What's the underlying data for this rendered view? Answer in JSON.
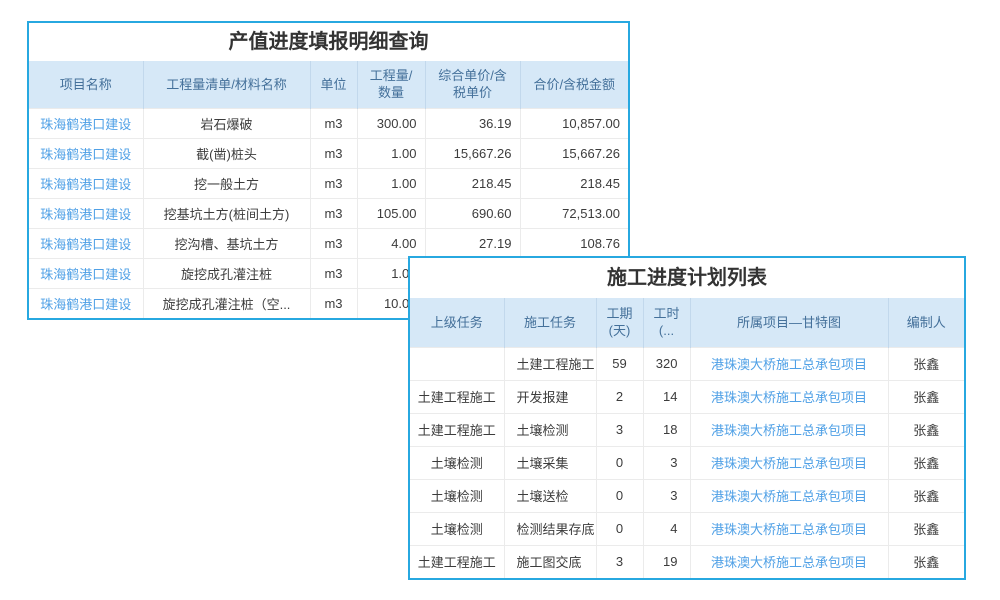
{
  "colors": {
    "card_border": "#27A8E0",
    "header_bg": "#D6E8F7",
    "header_text": "#44709A",
    "link_text": "#4FA0E6",
    "body_text": "#3C3C3C",
    "title_text": "#333333",
    "divider": "#EBEBEB"
  },
  "table1": {
    "title": "产值进度填报明细查询",
    "columns": [
      "项目名称",
      "工程量清单/材料名称",
      "单位",
      "工程量/\n数量",
      "综合单价/含\n税单价",
      "合价/含税金额"
    ],
    "rows": [
      [
        "珠海鹤港口建设",
        "岩石爆破",
        "m3",
        "300.00",
        "36.19",
        "10,857.00"
      ],
      [
        "珠海鹤港口建设",
        "截(凿)桩头",
        "m3",
        "1.00",
        "15,667.26",
        "15,667.26"
      ],
      [
        "珠海鹤港口建设",
        "挖一般土方",
        "m3",
        "1.00",
        "218.45",
        "218.45"
      ],
      [
        "珠海鹤港口建设",
        "挖基坑土方(桩间土方)",
        "m3",
        "105.00",
        "690.60",
        "72,513.00"
      ],
      [
        "珠海鹤港口建设",
        "挖沟槽、基坑土方",
        "m3",
        "4.00",
        "27.19",
        "108.76"
      ],
      [
        "珠海鹤港口建设",
        "旋挖成孔灌注桩",
        "m3",
        "1.00",
        "",
        ""
      ],
      [
        "珠海鹤港口建设",
        "旋挖成孔灌注桩（空...",
        "m3",
        "10.00",
        "",
        ""
      ]
    ]
  },
  "table2": {
    "title": "施工进度计划列表",
    "columns": [
      "上级任务",
      "施工任务",
      "工期\n(天)",
      "工时\n(...",
      "所属项目—甘特图",
      "编制人"
    ],
    "rows": [
      [
        "",
        "土建工程施工",
        "59",
        "320",
        "港珠澳大桥施工总承包项目",
        "张鑫"
      ],
      [
        "土建工程施工",
        "开发报建",
        "2",
        "14",
        "港珠澳大桥施工总承包项目",
        "张鑫"
      ],
      [
        "土建工程施工",
        "土壤检测",
        "3",
        "18",
        "港珠澳大桥施工总承包项目",
        "张鑫"
      ],
      [
        "土壤检测",
        "土壤采集",
        "0",
        "3",
        "港珠澳大桥施工总承包项目",
        "张鑫"
      ],
      [
        "土壤检测",
        "土壤送检",
        "0",
        "3",
        "港珠澳大桥施工总承包项目",
        "张鑫"
      ],
      [
        "土壤检测",
        "检测结果存底",
        "0",
        "4",
        "港珠澳大桥施工总承包项目",
        "张鑫"
      ],
      [
        "土建工程施工",
        "施工图交底",
        "3",
        "19",
        "港珠澳大桥施工总承包项目",
        "张鑫"
      ]
    ]
  }
}
